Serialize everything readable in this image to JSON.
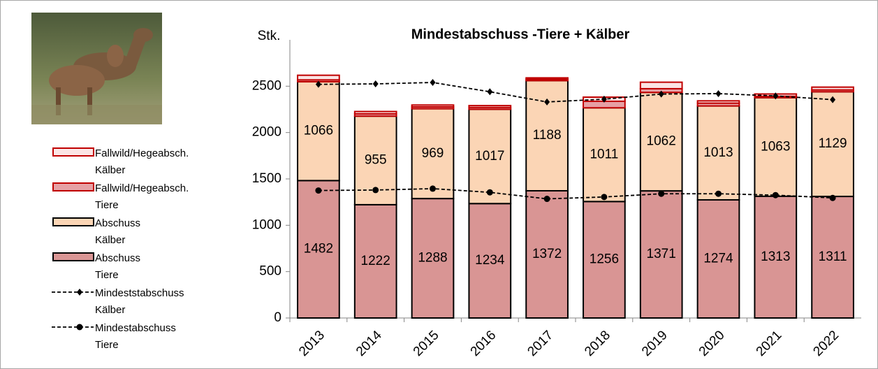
{
  "chart_data": {
    "type": "bar",
    "stacked": true,
    "title": "Mindestabschuss -Tiere + Kälber",
    "y_label": "Stk.",
    "categories": [
      "2013",
      "2014",
      "2015",
      "2016",
      "2017",
      "2018",
      "2019",
      "2020",
      "2021",
      "2022"
    ],
    "ylim": [
      0,
      3000
    ],
    "yticks": [
      0,
      500,
      1000,
      1500,
      2000,
      2500
    ],
    "legend": "left",
    "series": [
      {
        "name": "Abschuss Tiere",
        "type": "bar",
        "color": "#d99594",
        "stroke": "#000000",
        "show_labels": true,
        "values": [
          1482,
          1222,
          1288,
          1234,
          1372,
          1256,
          1371,
          1274,
          1313,
          1311
        ]
      },
      {
        "name": "Abschuss Kälber",
        "type": "bar",
        "color": "#fbd5b5",
        "stroke": "#000000",
        "show_labels": true,
        "values": [
          1066,
          955,
          969,
          1017,
          1188,
          1011,
          1062,
          1013,
          1063,
          1129
        ]
      },
      {
        "name": "Fallwild/Hegeabsch. Tiere",
        "type": "bar",
        "color": "#e6a0a4",
        "stroke": "#c00000",
        "show_labels": false,
        "values": [
          20,
          25,
          20,
          20,
          15,
          70,
          40,
          30,
          15,
          20
        ]
      },
      {
        "name": "Fallwild/Hegeabsch. Kälber",
        "type": "bar",
        "color": "#fbe4e4",
        "stroke": "#c00000",
        "show_labels": false,
        "values": [
          50,
          25,
          20,
          20,
          15,
          45,
          70,
          25,
          25,
          30
        ]
      },
      {
        "name": "Mindeststabschuss Kälber",
        "type": "line",
        "color": "#000000",
        "marker": "diamond",
        "dashed": true,
        "values": [
          2520,
          2525,
          2540,
          2440,
          2330,
          2360,
          2415,
          2420,
          2395,
          2355
        ]
      },
      {
        "name": "Mindestabschuss Tiere",
        "type": "line",
        "color": "#000000",
        "marker": "circle",
        "dashed": true,
        "values": [
          1375,
          1380,
          1395,
          1355,
          1285,
          1305,
          1340,
          1340,
          1325,
          1295
        ]
      }
    ],
    "legend_order": [
      3,
      2,
      1,
      0,
      4,
      5
    ]
  }
}
